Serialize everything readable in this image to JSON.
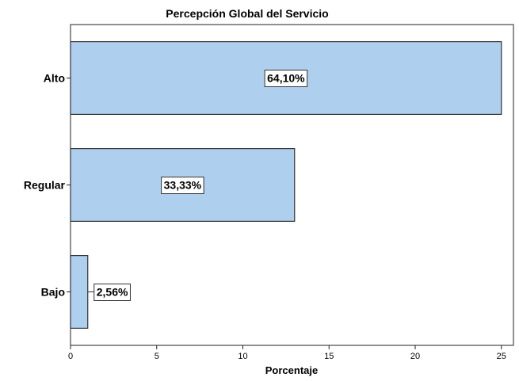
{
  "chart_data": {
    "type": "bar",
    "orientation": "horizontal",
    "title": "Percepción Global del Servicio",
    "xlabel": "Porcentaje",
    "ylabel": "",
    "categories": [
      "Alto",
      "Regular",
      "Bajo"
    ],
    "values": [
      25,
      13,
      1
    ],
    "data_labels": [
      "64,10%",
      "33,33%",
      "2,56%"
    ],
    "xlim": [
      0,
      25.7
    ],
    "x_ticks": [
      0,
      5,
      10,
      15,
      20,
      25
    ],
    "grid": false,
    "legend": "none",
    "colors": {
      "bar_fill": "#aecfee",
      "bar_stroke": "#333333",
      "plot_bg": "#ffffff"
    }
  }
}
